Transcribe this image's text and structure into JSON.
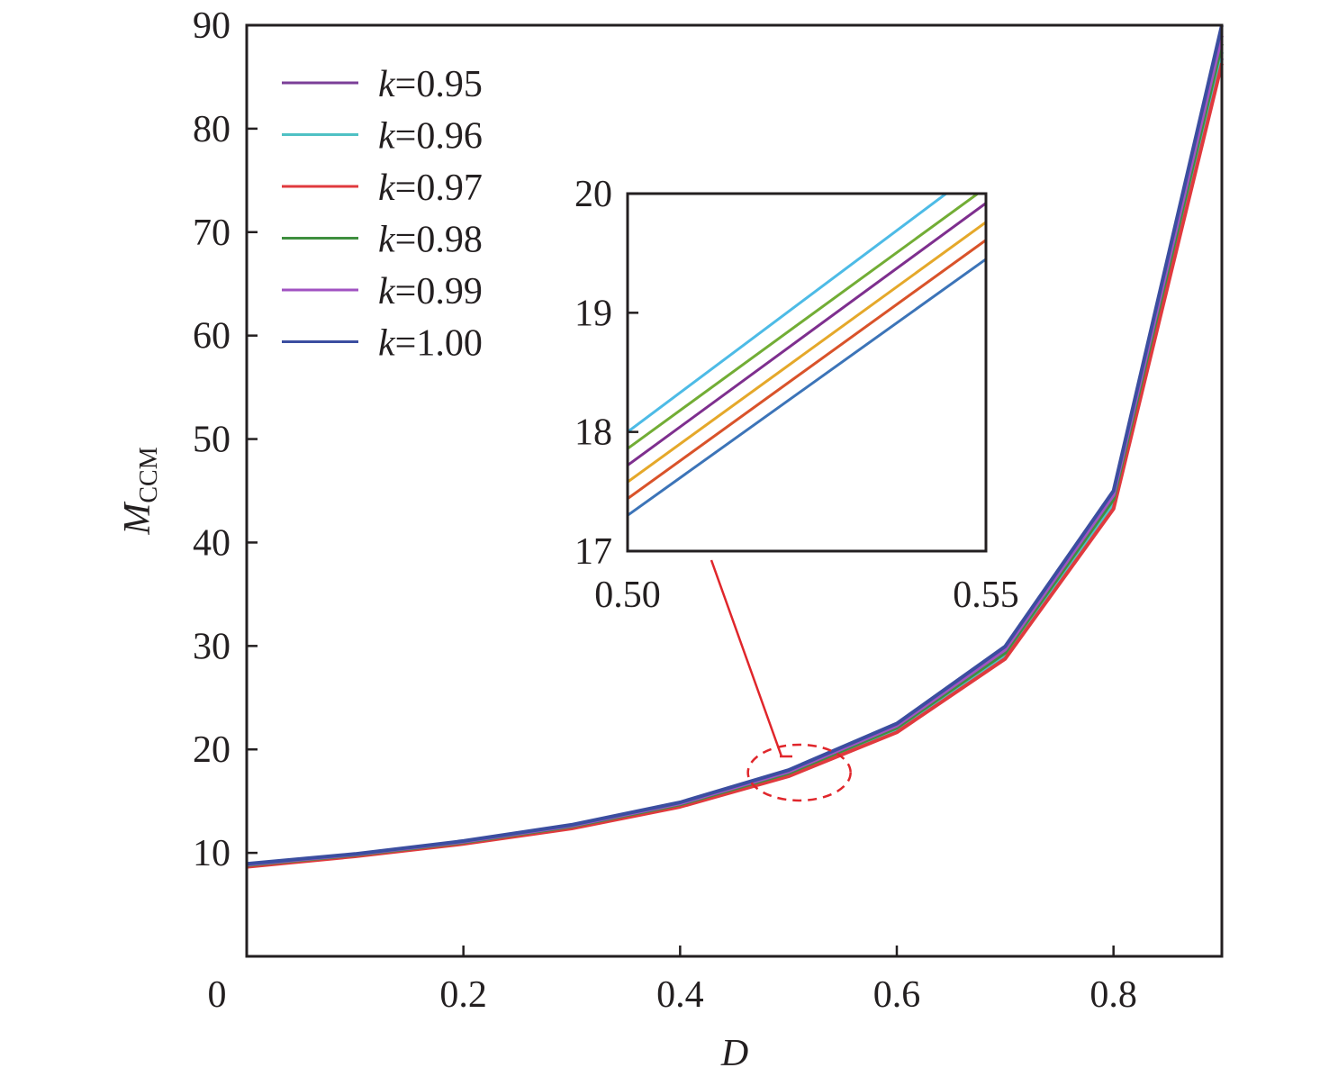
{
  "chart_data": [
    {
      "type": "line",
      "xlabel": "D",
      "ylabel": "M",
      "ylabel_sub": "CCM",
      "xlim": [
        0,
        0.9
      ],
      "ylim": [
        0,
        90
      ],
      "xticks": [
        0,
        0.2,
        0.4,
        0.6,
        0.8
      ],
      "xtick_labels": [
        "0",
        "0.2",
        "0.4",
        "0.6",
        "0.8"
      ],
      "yticks": [
        10,
        20,
        30,
        40,
        50,
        60,
        70,
        80,
        90
      ],
      "ytick_labels": [
        "10",
        "20",
        "30",
        "40",
        "50",
        "60",
        "70",
        "80",
        "90"
      ],
      "grid": false,
      "legend_placement": "top-left",
      "x": [
        0,
        0.1,
        0.2,
        0.3,
        0.4,
        0.5,
        0.6,
        0.7,
        0.8,
        0.9
      ],
      "series": [
        {
          "name": "k=0.95",
          "legend_k": "k",
          "legend_val": "=0.95",
          "color": "#7b3f98",
          "values": [
            8.7,
            9.7,
            10.9,
            12.4,
            14.5,
            17.45,
            21.75,
            28.85,
            43.4,
            86.8
          ]
        },
        {
          "name": "k=0.96",
          "legend_k": "k",
          "legend_val": "=0.96",
          "color": "#4fc1c4",
          "values": [
            8.75,
            9.74,
            10.95,
            12.48,
            14.58,
            17.55,
            21.9,
            29.05,
            43.7,
            87.4
          ]
        },
        {
          "name": "k=0.97",
          "legend_k": "k",
          "legend_val": "=0.97",
          "color": "#e03a3e",
          "values": [
            8.65,
            9.66,
            10.86,
            12.36,
            14.45,
            17.4,
            21.65,
            28.75,
            43.25,
            86.3
          ]
        },
        {
          "name": "k=0.98",
          "legend_k": "k",
          "legend_val": "=0.98",
          "color": "#3f8f3f",
          "values": [
            8.82,
            9.8,
            11.02,
            12.56,
            14.68,
            17.7,
            22.1,
            29.35,
            44.2,
            88.2
          ]
        },
        {
          "name": "k=0.99",
          "legend_k": "k",
          "legend_val": "=0.99",
          "color": "#a153c2",
          "values": [
            8.88,
            9.85,
            11.08,
            12.64,
            14.78,
            17.85,
            22.3,
            29.65,
            44.6,
            89.0
          ]
        },
        {
          "name": "k=1.00",
          "legend_k": "k",
          "legend_val": "=1.00",
          "color": "#3b4ea0",
          "values": [
            8.95,
            9.9,
            11.15,
            12.72,
            14.88,
            18.0,
            22.5,
            29.95,
            45.0,
            90.0
          ]
        }
      ],
      "annotation": {
        "type": "dashed-ellipse-with-arrow",
        "color": "#e0262b",
        "center": [
          0.5,
          17.5
        ]
      }
    },
    {
      "type": "line",
      "role": "inset",
      "xlim": [
        0.5,
        0.55
      ],
      "ylim": [
        17,
        20
      ],
      "xticks": [
        0.5,
        0.55
      ],
      "xtick_labels": [
        "0.50",
        "0.55"
      ],
      "yticks": [
        17,
        18,
        19,
        20
      ],
      "ytick_labels": [
        "17",
        "18",
        "19",
        "20"
      ],
      "x": [
        0.5,
        0.55
      ],
      "series": [
        {
          "color": "#4dbbe6",
          "values": [
            18.0,
            20.25
          ]
        },
        {
          "color": "#72ad35",
          "values": [
            17.86,
            20.05
          ]
        },
        {
          "color": "#7e2f8e",
          "values": [
            17.72,
            19.92
          ]
        },
        {
          "color": "#e5a82a",
          "values": [
            17.58,
            19.76
          ]
        },
        {
          "color": "#d9532a",
          "values": [
            17.44,
            19.61
          ]
        },
        {
          "color": "#3c74b8",
          "values": [
            17.3,
            19.45
          ]
        }
      ]
    }
  ]
}
